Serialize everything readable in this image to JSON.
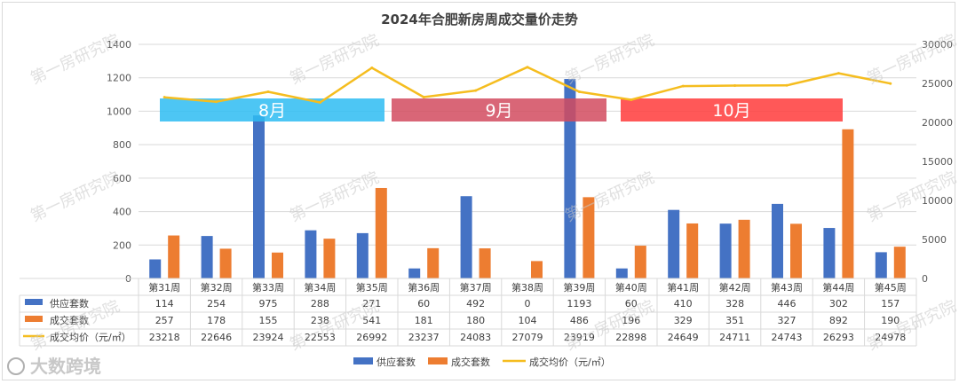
{
  "chart_data": {
    "type": "bar",
    "title": "2024年合肥新房周成交量价走势",
    "categories": [
      "第31周",
      "第32周",
      "第33周",
      "第34周",
      "第35周",
      "第36周",
      "第37周",
      "第38周",
      "第39周",
      "第40周",
      "第41周",
      "第42周",
      "第43周",
      "第44周",
      "第45周"
    ],
    "series": [
      {
        "name": "供应套数",
        "type": "bar",
        "axis": "left",
        "color": "#4472c4",
        "values": [
          114,
          254,
          975,
          288,
          271,
          60,
          492,
          0,
          1193,
          60,
          410,
          328,
          446,
          302,
          157
        ]
      },
      {
        "name": "成交套数",
        "type": "bar",
        "axis": "left",
        "color": "#ed7d31",
        "values": [
          257,
          178,
          155,
          238,
          541,
          181,
          180,
          104,
          486,
          196,
          329,
          351,
          327,
          892,
          190
        ]
      },
      {
        "name": "成交均价（元/㎡）",
        "type": "line",
        "axis": "right",
        "color": "#f5bd1f",
        "values": [
          23218,
          22646,
          23924,
          22553,
          26992,
          23237,
          24083,
          27079,
          23919,
          22898,
          24649,
          24711,
          24743,
          26293,
          24978
        ]
      }
    ],
    "y_left": {
      "min": 0,
      "max": 1400,
      "ticks": [
        "0",
        "200",
        "400",
        "600",
        "800",
        "1000",
        "1200",
        "1400"
      ]
    },
    "y_right": {
      "min": 0,
      "max": 30000,
      "ticks": [
        "0",
        "5000",
        "10000",
        "15000",
        "20000",
        "25000",
        "30000"
      ]
    },
    "month_bands": [
      {
        "label": "8月",
        "from": "第31周",
        "to": "第35周",
        "color": "#2ebcf2"
      },
      {
        "label": "9月",
        "from": "第36周",
        "to": "第39周",
        "color": "#d24b5f"
      },
      {
        "label": "10月",
        "from": "第40周",
        "to": "第44周",
        "color": "#ff3b3b"
      }
    ],
    "grid": true,
    "legend": "bottom"
  },
  "watermark": "第一房研究院",
  "logo_text": "大数跨境"
}
